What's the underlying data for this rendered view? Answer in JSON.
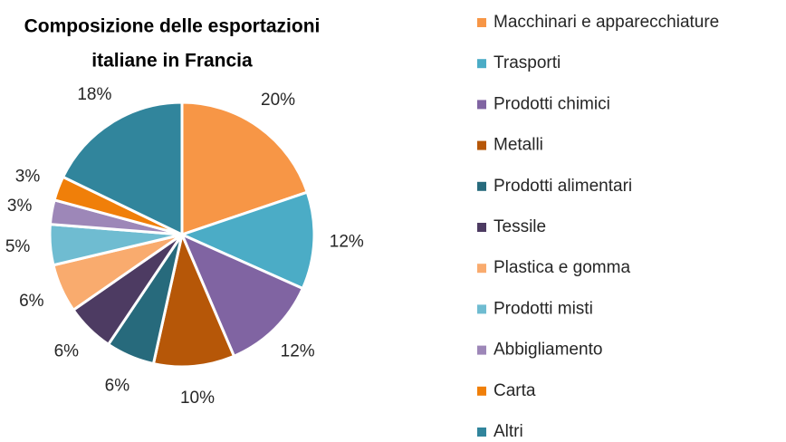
{
  "chart_data": {
    "type": "pie",
    "title": [
      "Composizione delle esportazioni",
      "italiane in Francia"
    ],
    "categories": [
      "Macchinari e apparecchiature",
      "Trasporti",
      "Prodotti chimici",
      "Metalli",
      "Prodotti alimentari",
      "Tessile",
      "Plastica e gomma",
      "Prodotti misti",
      "Abbigliamento",
      "Carta",
      "Altri"
    ],
    "values": [
      20,
      12,
      12,
      10,
      6,
      6,
      6,
      5,
      3,
      3,
      18
    ],
    "value_labels": [
      "20%",
      "12%",
      "12%",
      "10%",
      "6%",
      "6%",
      "6%",
      "5%",
      "3%",
      "3%",
      "18%"
    ],
    "colors": [
      "#F79646",
      "#4BACC6",
      "#8064A2",
      "#B65708",
      "#276A7C",
      "#4D3B62",
      "#F9AB6E",
      "#6FBCD1",
      "#9D87B8",
      "#F07F09",
      "#31859C"
    ],
    "legend": "right"
  }
}
